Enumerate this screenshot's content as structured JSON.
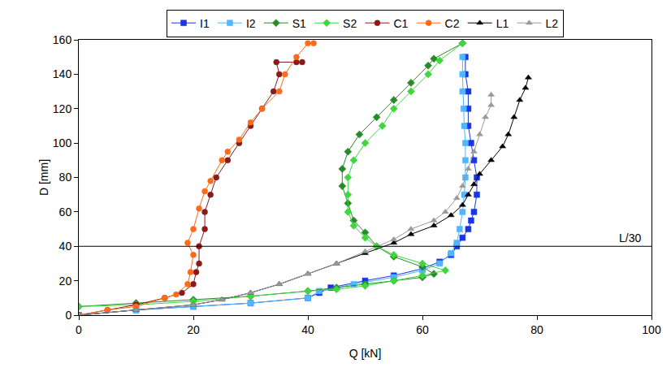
{
  "chart_data": {
    "type": "line",
    "x_label": "Q [kN]",
    "y_label": "D [mm]",
    "xlim": [
      0,
      100
    ],
    "xticks": [
      0,
      20,
      40,
      60,
      80,
      100
    ],
    "ylim": [
      0,
      160
    ],
    "yticks": [
      0,
      20,
      40,
      60,
      80,
      100,
      120,
      140,
      160
    ],
    "grid": false,
    "legend": "top",
    "annotations": [
      {
        "text": "L/30",
        "y": 40
      }
    ],
    "series": [
      {
        "name": "I1",
        "color": "#1a35e6",
        "marker": "square",
        "x": [
          0,
          10,
          20,
          30,
          40,
          42,
          44,
          50,
          55,
          60,
          63,
          65,
          66,
          67,
          68,
          68.5,
          69,
          69.5,
          69.5,
          69,
          68.5,
          68,
          68,
          68,
          67.5,
          67.5
        ],
        "values": [
          0,
          3,
          5,
          7,
          10,
          13,
          16,
          20,
          23,
          27,
          31,
          35,
          40,
          45,
          50,
          55,
          60,
          70,
          80,
          90,
          100,
          110,
          120,
          130,
          140,
          150
        ]
      },
      {
        "name": "I2",
        "color": "#4fb6ff",
        "marker": "square",
        "x": [
          0,
          10,
          20,
          30,
          40,
          42,
          48,
          55,
          60,
          63,
          65,
          66,
          66.5,
          67,
          67.3,
          67.5,
          67.5,
          67.5,
          67.3,
          67.2,
          67,
          67,
          67
        ],
        "values": [
          0,
          3,
          5,
          7,
          10,
          14,
          18,
          22,
          26,
          30,
          36,
          42,
          50,
          60,
          70,
          80,
          90,
          100,
          110,
          120,
          130,
          140,
          150
        ]
      },
      {
        "name": "S1",
        "color": "#2a8a2a",
        "marker": "diamond",
        "x": [
          0,
          10,
          20,
          30,
          40,
          45,
          50,
          55,
          60,
          62,
          60,
          55,
          52,
          50,
          48,
          47,
          46,
          46,
          47,
          49,
          52,
          55,
          58,
          61,
          62,
          67
        ],
        "values": [
          5,
          7,
          9,
          11,
          14,
          16,
          18,
          20,
          22,
          24,
          28,
          34,
          40,
          48,
          55,
          65,
          75,
          85,
          95,
          105,
          115,
          125,
          135,
          145,
          149,
          158
        ]
      },
      {
        "name": "S2",
        "color": "#3fd63f",
        "marker": "diamond",
        "x": [
          0,
          10,
          20,
          30,
          40,
          45,
          50,
          55,
          60,
          64,
          60,
          55,
          52,
          50,
          48,
          47,
          47,
          47,
          48,
          50,
          53,
          55,
          58,
          61,
          63,
          67
        ],
        "values": [
          5,
          6,
          8,
          11,
          14,
          15,
          17,
          20,
          23,
          26,
          30,
          35,
          40,
          45,
          52,
          60,
          70,
          80,
          90,
          100,
          110,
          120,
          130,
          140,
          148,
          158
        ]
      },
      {
        "name": "C1",
        "color": "#8b1a1a",
        "marker": "circle",
        "x": [
          0,
          5,
          10,
          15,
          18,
          20,
          20.5,
          21,
          21,
          22,
          22,
          23,
          24,
          26,
          28,
          30,
          32,
          34,
          35,
          34.5,
          38,
          39
        ],
        "values": [
          0,
          3,
          6,
          10,
          13,
          18,
          25,
          30,
          40,
          50,
          60,
          70,
          80,
          90,
          100,
          110,
          120,
          130,
          140,
          147,
          147,
          147
        ]
      },
      {
        "name": "C2",
        "color": "#ff6a1a",
        "marker": "circle",
        "x": [
          0,
          5,
          10,
          15,
          17,
          19,
          19.5,
          20,
          19,
          20,
          21,
          22,
          23,
          25,
          26,
          28,
          30,
          32,
          35,
          36,
          38,
          40,
          41
        ],
        "values": [
          0,
          3,
          5,
          10,
          12,
          18,
          25,
          35,
          42,
          50,
          62,
          72,
          78,
          90,
          95,
          102,
          112,
          120,
          130,
          140,
          150,
          158,
          158
        ]
      },
      {
        "name": "L1",
        "color": "#000000",
        "marker": "triangle",
        "x": [
          0,
          10,
          20,
          25,
          30,
          35,
          40,
          45,
          50,
          55,
          58,
          62,
          65,
          67,
          68,
          69,
          70,
          72,
          74,
          75,
          76,
          77,
          78,
          78.5
        ],
        "values": [
          0,
          3,
          6,
          9,
          13,
          18,
          24,
          30,
          36,
          42,
          47,
          52,
          58,
          64,
          70,
          76,
          82,
          90,
          98,
          105,
          115,
          125,
          132,
          138
        ]
      },
      {
        "name": "L2",
        "color": "#999999",
        "marker": "triangle",
        "x": [
          0,
          10,
          20,
          25,
          30,
          35,
          40,
          45,
          50,
          55,
          58,
          62,
          64,
          66,
          67,
          68,
          69,
          70,
          71,
          72,
          72
        ],
        "values": [
          0,
          3,
          6,
          9,
          13,
          18,
          24,
          30,
          37,
          44,
          50,
          55,
          60,
          68,
          75,
          85,
          95,
          105,
          115,
          122,
          128
        ]
      }
    ]
  }
}
